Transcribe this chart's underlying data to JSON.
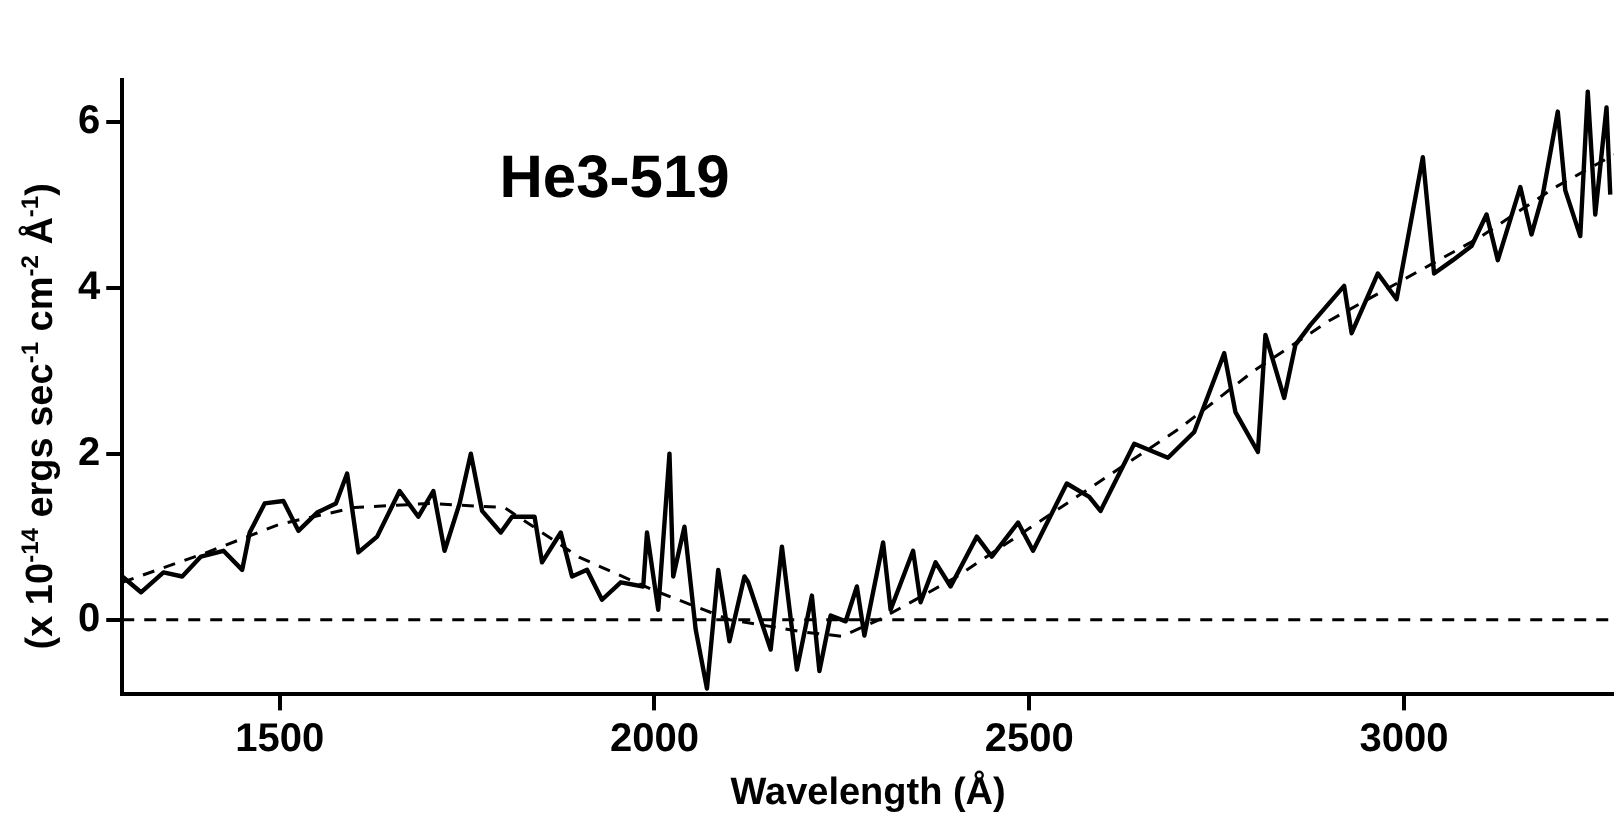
{
  "chart_data": {
    "type": "line",
    "title": "He3-519",
    "xlabel": "Wavelength (Å)",
    "ylabel": "(x 10$^{-14}$ ergs sec$^{-1}$ cm$^{-2}$ Å$^{-1}$)",
    "xlim": [
      1290,
      3280
    ],
    "xticks": [
      1500,
      2000,
      2500,
      3000
    ],
    "ylim": [
      -0.9,
      6.5
    ],
    "yticks": [
      0,
      2,
      4,
      6
    ],
    "ref_lines": [
      {
        "axis": "y",
        "value": 0,
        "color": "#000000",
        "line_style": "dashed"
      }
    ],
    "series": [
      {
        "color": "#000000",
        "line_style": "solid",
        "x": [
          1290,
          1315,
          1345,
          1370,
          1395,
          1425,
          1450,
          1460,
          1480,
          1505,
          1525,
          1550,
          1575,
          1590,
          1605,
          1630,
          1660,
          1685,
          1705,
          1720,
          1740,
          1755,
          1770,
          1795,
          1810,
          1840,
          1850,
          1875,
          1890,
          1910,
          1930,
          1955,
          1985,
          1990,
          2005,
          2020,
          2025,
          2040,
          2055,
          2070,
          2085,
          2100,
          2120,
          2125,
          2155,
          2170,
          2190,
          2210,
          2220,
          2235,
          2255,
          2270,
          2280,
          2305,
          2315,
          2345,
          2355,
          2375,
          2395,
          2430,
          2450,
          2485,
          2505,
          2550,
          2580,
          2595,
          2640,
          2685,
          2720,
          2760,
          2775,
          2805,
          2815,
          2840,
          2855,
          2875,
          2920,
          2930,
          2965,
          2990,
          3025,
          3040,
          3065,
          3090,
          3110,
          3125,
          3155,
          3170,
          3185,
          3205,
          3215,
          3235,
          3245,
          3255,
          3270,
          3275
        ],
        "values": [
          0.52,
          0.33,
          0.57,
          0.52,
          0.76,
          0.83,
          0.6,
          1.05,
          1.4,
          1.43,
          1.07,
          1.29,
          1.4,
          1.76,
          0.81,
          1.0,
          1.55,
          1.24,
          1.55,
          0.83,
          1.4,
          2.0,
          1.31,
          1.05,
          1.24,
          1.24,
          0.69,
          1.05,
          0.52,
          0.6,
          0.24,
          0.45,
          0.4,
          1.05,
          0.12,
          2.0,
          0.52,
          1.12,
          -0.12,
          -0.83,
          0.6,
          -0.26,
          0.52,
          0.45,
          -0.36,
          0.88,
          -0.6,
          0.29,
          -0.62,
          0.05,
          -0.02,
          0.4,
          -0.19,
          0.93,
          0.12,
          0.83,
          0.21,
          0.69,
          0.4,
          1.0,
          0.76,
          1.17,
          0.83,
          1.64,
          1.48,
          1.31,
          2.12,
          1.95,
          2.26,
          3.21,
          2.5,
          2.02,
          3.43,
          2.67,
          3.31,
          3.55,
          4.02,
          3.45,
          4.17,
          3.86,
          5.57,
          4.17,
          4.33,
          4.5,
          4.88,
          4.33,
          5.21,
          4.64,
          5.12,
          6.12,
          5.17,
          4.62,
          6.36,
          4.88,
          6.17,
          5.12
        ]
      },
      {
        "color": "#000000",
        "line_style": "dashed",
        "x": [
          1290,
          1400,
          1500,
          1600,
          1700,
          1800,
          1900,
          2000,
          2100,
          2200,
          2250,
          2300,
          2400,
          2500,
          2600,
          2700,
          2800,
          2900,
          3000,
          3100,
          3200,
          3280
        ],
        "values": [
          0.45,
          0.8,
          1.15,
          1.35,
          1.4,
          1.35,
          0.75,
          0.35,
          0.0,
          -0.15,
          -0.2,
          0.0,
          0.5,
          1.1,
          1.7,
          2.3,
          3.0,
          3.6,
          4.1,
          4.6,
          5.2,
          5.6
        ]
      }
    ]
  }
}
